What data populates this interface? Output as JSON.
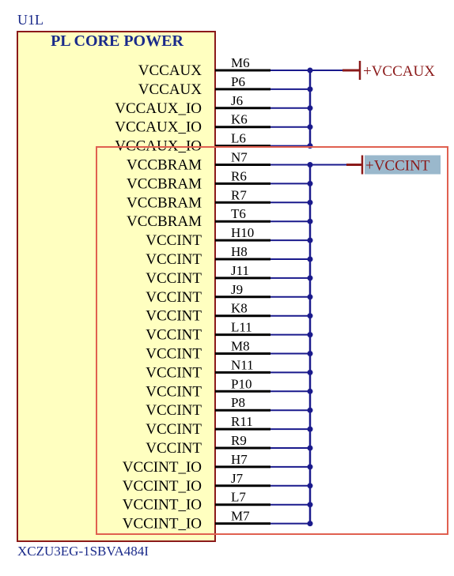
{
  "component": {
    "designator": "U1L",
    "title": "PL CORE POWER",
    "part_number": "XCZU3EG-1SBVA484I"
  },
  "pins": [
    {
      "name": "VCCAUX",
      "number": "M6"
    },
    {
      "name": "VCCAUX",
      "number": "P6"
    },
    {
      "name": "VCCAUX_IO",
      "number": "J6"
    },
    {
      "name": "VCCAUX_IO",
      "number": "K6"
    },
    {
      "name": "VCCAUX_IO",
      "number": "L6"
    },
    {
      "name": "VCCBRAM",
      "number": "N7"
    },
    {
      "name": "VCCBRAM",
      "number": "R6"
    },
    {
      "name": "VCCBRAM",
      "number": "R7"
    },
    {
      "name": "VCCBRAM",
      "number": "T6"
    },
    {
      "name": "VCCINT",
      "number": "H10"
    },
    {
      "name": "VCCINT",
      "number": "H8"
    },
    {
      "name": "VCCINT",
      "number": "J11"
    },
    {
      "name": "VCCINT",
      "number": "J9"
    },
    {
      "name": "VCCINT",
      "number": "K8"
    },
    {
      "name": "VCCINT",
      "number": "L11"
    },
    {
      "name": "VCCINT",
      "number": "M8"
    },
    {
      "name": "VCCINT",
      "number": "N11"
    },
    {
      "name": "VCCINT",
      "number": "P10"
    },
    {
      "name": "VCCINT",
      "number": "P8"
    },
    {
      "name": "VCCINT",
      "number": "R11"
    },
    {
      "name": "VCCINT",
      "number": "R9"
    },
    {
      "name": "VCCINT_IO",
      "number": "H7"
    },
    {
      "name": "VCCINT_IO",
      "number": "J7"
    },
    {
      "name": "VCCINT_IO",
      "number": "L7"
    },
    {
      "name": "VCCINT_IO",
      "number": "M7"
    }
  ],
  "nets": [
    {
      "label": "+VCCAUX",
      "highlighted": false,
      "pins": [
        "M6",
        "P6",
        "J6",
        "K6",
        "L6"
      ]
    },
    {
      "label": "+VCCINT",
      "highlighted": true,
      "pins": [
        "N7",
        "R6",
        "R7",
        "T6",
        "H10",
        "H8",
        "J11",
        "J9",
        "K8",
        "L11",
        "M8",
        "N11",
        "P10",
        "P8",
        "R11",
        "R9",
        "H7",
        "J7",
        "L7",
        "M7"
      ]
    }
  ],
  "colors": {
    "body_fill": "#ffffc0",
    "body_border": "#8b1a1a",
    "pin_text": "#000000",
    "title_text": "#1a2a8a",
    "designator_text": "#1a2a8a",
    "wire": "#1a1a8c",
    "power_symbol": "#8b1a1a",
    "net_label_text": "#8b1a1a",
    "highlight_fill": "#9ab8cc",
    "selection_box": "#e06050"
  }
}
